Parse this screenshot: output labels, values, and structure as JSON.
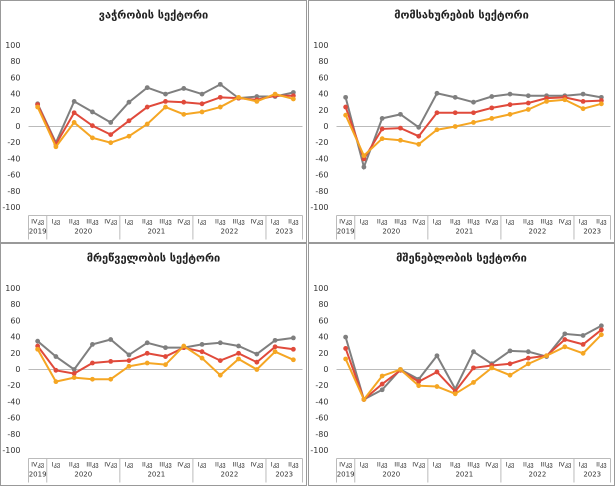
{
  "chart_data": [
    {
      "type": "line",
      "title": "ვაჭრობის სექტორი",
      "categories": [
        "IVკვ",
        "Iკვ",
        "IIკვ",
        "IIIკვ",
        "IVკვ",
        "Iკვ",
        "IIკვ",
        "IIIკვ",
        "IVკვ",
        "Iკვ",
        "IIკვ",
        "IIIკვ",
        "IVკვ",
        "Iკვ",
        "IIკვ"
      ],
      "x_groups": [
        {
          "label": "2019",
          "count": 1
        },
        {
          "label": "2020",
          "count": 4
        },
        {
          "label": "2021",
          "count": 4
        },
        {
          "label": "2022",
          "count": 4
        },
        {
          "label": "2023",
          "count": 2
        }
      ],
      "series": [
        {
          "color": "#7f7f7f",
          "values": [
            28,
            -20,
            31,
            18,
            5,
            30,
            48,
            40,
            47,
            40,
            52,
            35,
            37,
            37,
            42
          ]
        },
        {
          "color": "#e04a3b",
          "values": [
            27,
            -22,
            17,
            1,
            -10,
            7,
            24,
            31,
            30,
            28,
            36,
            35,
            33,
            38,
            38
          ]
        },
        {
          "color": "#f5a623",
          "values": [
            24,
            -25,
            5,
            -14,
            -20,
            -12,
            3,
            24,
            15,
            18,
            24,
            36,
            31,
            40,
            34
          ]
        }
      ],
      "ylim": [
        -100,
        100
      ],
      "yticks": [
        -100,
        -80,
        -60,
        -40,
        -20,
        0,
        20,
        40,
        60,
        80,
        100
      ]
    },
    {
      "type": "line",
      "title": "მომსახურების სექტორი",
      "categories": [
        "IVკვ",
        "Iკვ",
        "IIკვ",
        "IIIკვ",
        "IVკვ",
        "Iკვ",
        "IIკვ",
        "IIIკვ",
        "IVკვ",
        "Iკვ",
        "IIკვ",
        "IIIკვ",
        "IVკვ",
        "Iკვ",
        "IIკვ"
      ],
      "x_groups": [
        {
          "label": "2019",
          "count": 1
        },
        {
          "label": "2020",
          "count": 4
        },
        {
          "label": "2021",
          "count": 4
        },
        {
          "label": "2022",
          "count": 4
        },
        {
          "label": "2023",
          "count": 2
        }
      ],
      "series": [
        {
          "color": "#7f7f7f",
          "values": [
            36,
            -50,
            10,
            15,
            -1,
            41,
            36,
            30,
            37,
            40,
            38,
            38,
            38,
            40,
            36
          ]
        },
        {
          "color": "#e04a3b",
          "values": [
            24,
            -40,
            -3,
            -2,
            -12,
            17,
            17,
            17,
            23,
            27,
            29,
            35,
            36,
            31,
            32
          ]
        },
        {
          "color": "#f5a623",
          "values": [
            14,
            -36,
            -15,
            -17,
            -22,
            -4,
            0,
            5,
            10,
            15,
            21,
            31,
            33,
            22,
            28
          ]
        }
      ],
      "ylim": [
        -100,
        100
      ],
      "yticks": [
        -100,
        -80,
        -60,
        -40,
        -20,
        0,
        20,
        40,
        60,
        80,
        100
      ]
    },
    {
      "type": "line",
      "title": "მრეწველობის სექტორი",
      "categories": [
        "IVკვ",
        "Iკვ",
        "IIკვ",
        "IIIკვ",
        "IVკვ",
        "Iკვ",
        "IIკვ",
        "IIIკვ",
        "IVკვ",
        "Iკვ",
        "IIკვ",
        "IIIკვ",
        "IVკვ",
        "Iკვ",
        "IIკვ"
      ],
      "x_groups": [
        {
          "label": "2019",
          "count": 1
        },
        {
          "label": "2020",
          "count": 4
        },
        {
          "label": "2021",
          "count": 4
        },
        {
          "label": "2022",
          "count": 4
        },
        {
          "label": "2023",
          "count": 2
        }
      ],
      "series": [
        {
          "color": "#7f7f7f",
          "values": [
            35,
            16,
            0,
            31,
            37,
            18,
            33,
            27,
            27,
            31,
            33,
            29,
            19,
            36,
            39
          ]
        },
        {
          "color": "#e04a3b",
          "values": [
            29,
            -1,
            -5,
            8,
            10,
            11,
            20,
            16,
            27,
            22,
            11,
            20,
            9,
            28,
            25
          ]
        },
        {
          "color": "#f5a623",
          "values": [
            25,
            -15,
            -10,
            -12,
            -12,
            4,
            8,
            6,
            29,
            14,
            -7,
            13,
            0,
            22,
            12
          ]
        }
      ],
      "ylim": [
        -100,
        100
      ],
      "yticks": [
        -100,
        -80,
        -60,
        -40,
        -20,
        0,
        20,
        40,
        60,
        80,
        100
      ]
    },
    {
      "type": "line",
      "title": "მშენებლობის სექტორი",
      "categories": [
        "IVკვ",
        "Iკვ",
        "IIკვ",
        "IIIკვ",
        "IVკვ",
        "Iკვ",
        "IIკვ",
        "IIIკვ",
        "IVკვ",
        "Iკვ",
        "IIკვ",
        "IIIკვ",
        "IVკვ",
        "Iკვ",
        "IIკვ"
      ],
      "x_groups": [
        {
          "label": "2019",
          "count": 1
        },
        {
          "label": "2020",
          "count": 4
        },
        {
          "label": "2021",
          "count": 4
        },
        {
          "label": "2022",
          "count": 4
        },
        {
          "label": "2023",
          "count": 2
        }
      ],
      "series": [
        {
          "color": "#7f7f7f",
          "values": [
            40,
            -37,
            -25,
            0,
            -12,
            17,
            -24,
            22,
            7,
            23,
            22,
            16,
            44,
            42,
            54
          ]
        },
        {
          "color": "#e04a3b",
          "values": [
            26,
            -37,
            -18,
            -1,
            -15,
            -3,
            -27,
            2,
            5,
            7,
            14,
            17,
            37,
            31,
            49
          ]
        },
        {
          "color": "#f5a623",
          "values": [
            13,
            -37,
            -8,
            0,
            -20,
            -21,
            -30,
            -16,
            2,
            -7,
            7,
            17,
            28,
            20,
            43
          ]
        }
      ],
      "ylim": [
        -100,
        100
      ],
      "yticks": [
        -100,
        -80,
        -60,
        -40,
        -20,
        0,
        20,
        40,
        60,
        80,
        100
      ]
    }
  ]
}
